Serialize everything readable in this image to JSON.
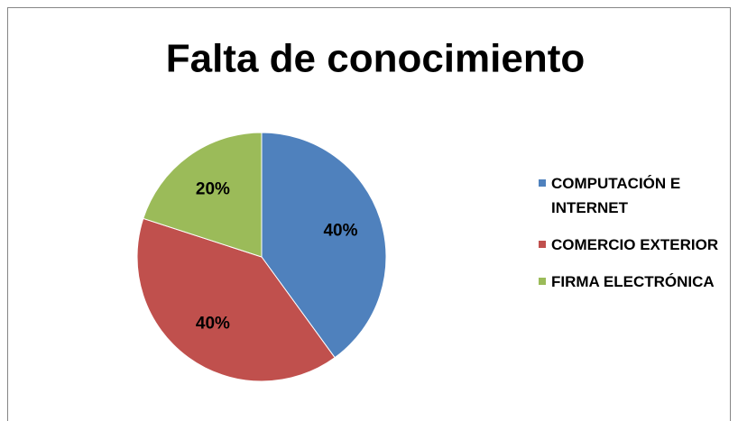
{
  "chart_data": {
    "type": "pie",
    "title": "Falta de conocimiento",
    "categories": [
      "COMPUTACIÓN E INTERNET",
      "COMERCIO EXTERIOR",
      "FIRMA ELECTRÓNICA"
    ],
    "values": [
      40,
      40,
      20
    ],
    "value_labels": [
      "40%",
      "40%",
      "20%"
    ],
    "colors": [
      "#4f81bd",
      "#c0504d",
      "#9bbb59"
    ],
    "legend": "right"
  }
}
